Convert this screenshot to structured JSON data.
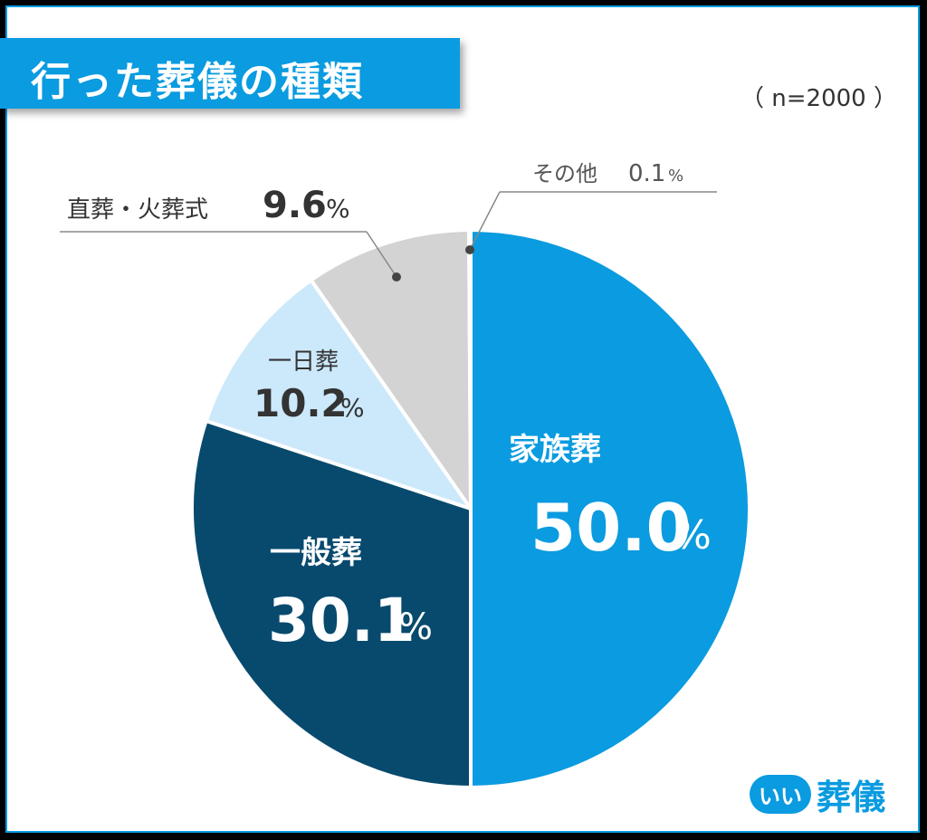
{
  "title": "行った葬儀の種類",
  "sample_size": "（ n=2000 ）",
  "logo": {
    "mark": "いい",
    "name": "葬儀"
  },
  "colors": {
    "family": "#0a9be0",
    "general": "#074a6e",
    "oneday": "#cce9fb",
    "direct": "#d3d3d3",
    "other": "#e6e6e6",
    "title_bg": "#0a9be0"
  },
  "chart_data": {
    "type": "pie",
    "title": "行った葬儀の種類",
    "n": 2000,
    "slices": [
      {
        "label": "家族葬",
        "value": 50.0,
        "display": "50.0",
        "color": "#0a9be0"
      },
      {
        "label": "一般葬",
        "value": 30.1,
        "display": "30.1",
        "color": "#074a6e"
      },
      {
        "label": "一日葬",
        "value": 10.2,
        "display": "10.2",
        "color": "#cce9fb"
      },
      {
        "label": "直葬・火葬式",
        "value": 9.6,
        "display": "9.6",
        "color": "#d3d3d3"
      },
      {
        "label": "その他",
        "value": 0.1,
        "display": "0.1",
        "color": "#e6e6e6"
      }
    ],
    "unit": "%"
  }
}
